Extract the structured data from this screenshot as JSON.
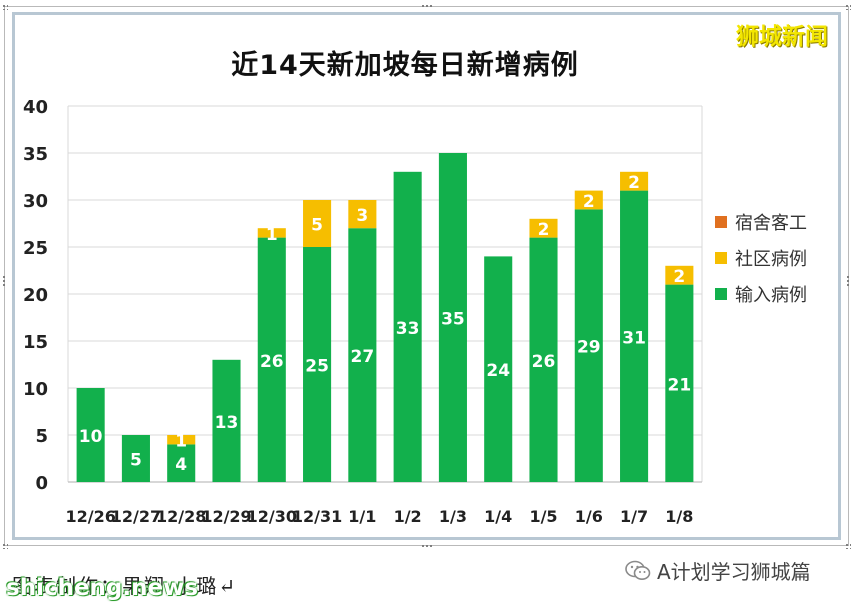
{
  "watermark_top": "狮城新闻",
  "watermark_bottom": "shicheng.news",
  "footer_caption": "图表制作：果翔  小璐↵",
  "wechat_account": "A计划学习狮城篇",
  "legend": [
    {
      "label": "宿舍客工",
      "color": "#e07020"
    },
    {
      "label": "社区病例",
      "color": "#f6be00"
    },
    {
      "label": "输入病例",
      "color": "#12b04c"
    }
  ],
  "chart_data": {
    "type": "bar",
    "stacked": true,
    "title": "近14天新加坡每日新增病例",
    "xlabel": "",
    "ylabel": "",
    "categories": [
      "12/26",
      "12/27",
      "12/28",
      "12/29",
      "12/30",
      "12/31",
      "1/1",
      "1/2",
      "1/3",
      "1/4",
      "1/5",
      "1/6",
      "1/7",
      "1/8"
    ],
    "series": [
      {
        "name": "宿舍客工",
        "values": [
          0,
          0,
          0,
          0,
          0,
          0,
          0,
          0,
          0,
          0,
          0,
          0,
          0,
          0
        ],
        "color": "#e07020"
      },
      {
        "name": "输入病例",
        "values": [
          10,
          5,
          4,
          13,
          26,
          25,
          27,
          33,
          35,
          24,
          26,
          29,
          31,
          21
        ],
        "color": "#12b04c"
      },
      {
        "name": "社区病例",
        "values": [
          0,
          0,
          1,
          0,
          1,
          5,
          3,
          0,
          0,
          0,
          2,
          2,
          2,
          2
        ],
        "color": "#f6be00"
      }
    ],
    "ylim": [
      0,
      40
    ],
    "yticks": [
      0,
      5,
      10,
      15,
      20,
      25,
      30,
      35,
      40
    ],
    "grid": true,
    "legend_position": "right"
  }
}
